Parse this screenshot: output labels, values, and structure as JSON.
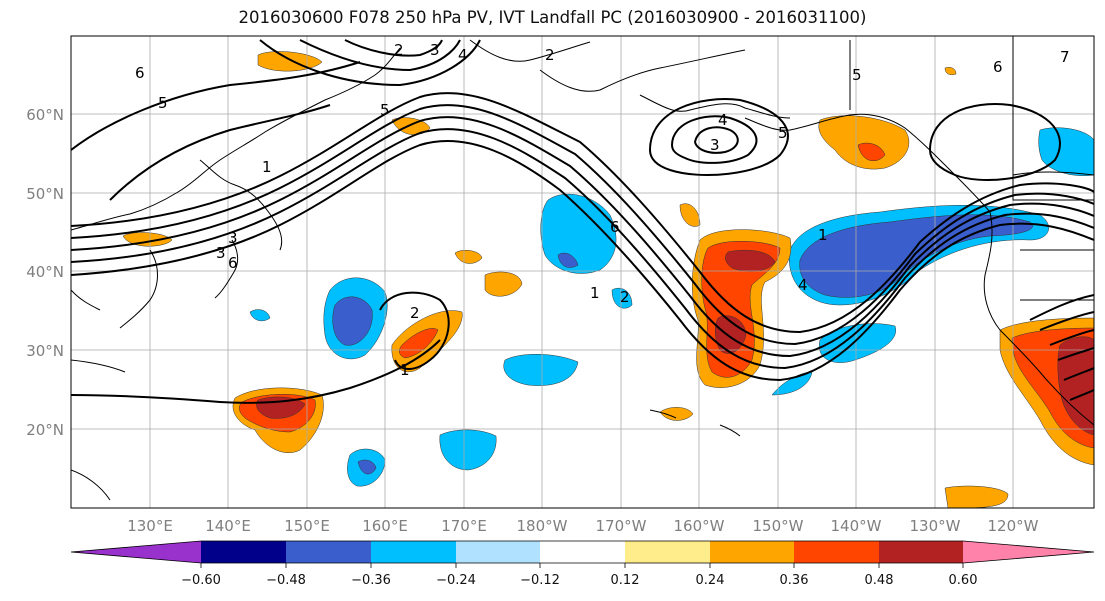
{
  "title": "2016030600 F078 250 hPa PV, IVT Landfall PC (2016030900 - 2016031100)",
  "map": {
    "lon_labels": [
      "130°E",
      "140°E",
      "150°E",
      "160°E",
      "170°E",
      "180°W",
      "170°W",
      "160°W",
      "150°W",
      "140°W",
      "130°W",
      "120°W"
    ],
    "lat_labels": [
      "60°N",
      "50°N",
      "40°N",
      "30°N",
      "20°N"
    ],
    "contour_labels": [
      "6",
      "5",
      "2",
      "3",
      "4",
      "1",
      "3",
      "6",
      "5",
      "4",
      "3",
      "5",
      "1",
      "6",
      "2",
      "4",
      "3",
      "7",
      "2",
      "1",
      "1",
      "2",
      "5",
      "6"
    ]
  },
  "colorbar": {
    "tick_labels": [
      "−0.60",
      "−0.48",
      "−0.36",
      "−0.24",
      "−0.12",
      "0.12",
      "0.24",
      "0.36",
      "0.48",
      "0.60"
    ],
    "colors": [
      "#9932cc",
      "#00008b",
      "#3a5fcd",
      "#00bfff",
      "#b0e2ff",
      "#ffffff",
      "#ffec8b",
      "#ffa500",
      "#ff4500",
      "#b22222",
      "#ff82ab"
    ]
  },
  "shading_colors": {
    "neg_strong": "#3a5fcd",
    "neg_mid": "#00bfff",
    "neg_weak": "#b0e2ff",
    "pos_weak": "#ffec8b",
    "pos_mid": "#ffa500",
    "pos_strong": "#ff4500",
    "pos_max": "#b22222"
  }
}
